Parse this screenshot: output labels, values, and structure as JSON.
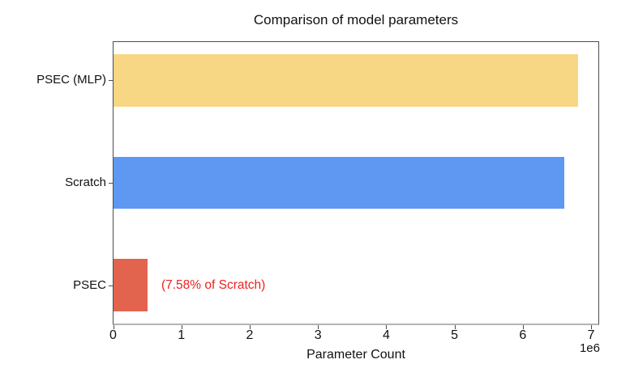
{
  "chart_data": {
    "type": "bar",
    "orientation": "horizontal",
    "title": "Comparison of model parameters",
    "xlabel": "Parameter Count",
    "ylabel": "",
    "categories": [
      "PSEC (MLP)",
      "Scratch",
      "PSEC"
    ],
    "values": [
      6800000,
      6600000,
      500000
    ],
    "bar_colors": [
      "#F7D783",
      "#5F98F3",
      "#E2634E"
    ],
    "xlim": [
      0,
      7100000
    ],
    "xticks": [
      0,
      1000000,
      2000000,
      3000000,
      4000000,
      5000000,
      6000000,
      7000000
    ],
    "xtick_labels": [
      "0",
      "1",
      "2",
      "3",
      "4",
      "5",
      "6",
      "7"
    ],
    "xtick_offset_label": "1e6",
    "grid": false,
    "legend": null,
    "annotation": {
      "text": "(7.58% of Scratch)",
      "color": "#EF2020",
      "attached_to_category": "PSEC",
      "row_index": 2,
      "x": 700000
    }
  },
  "colors": {
    "spine_dark": "#4d4d4d",
    "spine_bottom": "#b3b3b3",
    "text": "#111111",
    "background": "#ffffff"
  }
}
